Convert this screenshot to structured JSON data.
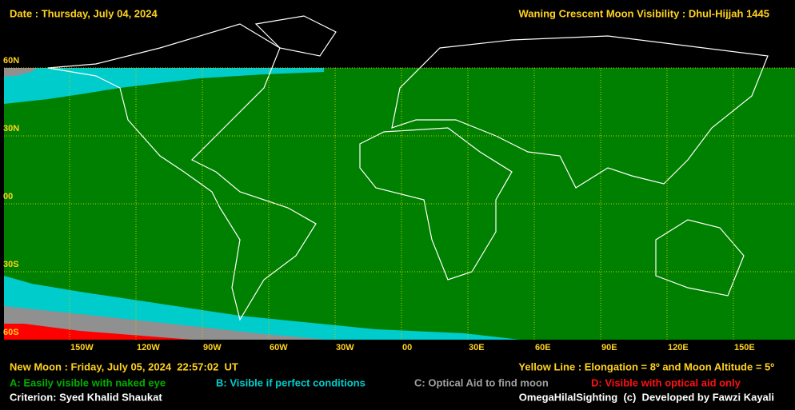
{
  "header": {
    "date": "Date : Thursday, July 04, 2024",
    "title": "Waning Crescent Moon Visibility : Dhul-Hijjah 1445"
  },
  "map": {
    "lat_labels": [
      "60N",
      "30N",
      "00",
      "30S",
      "60S"
    ],
    "lon_labels": [
      "150W",
      "120W",
      "90W",
      "60W",
      "30W",
      "00",
      "30E",
      "60E",
      "90E",
      "120E",
      "150E"
    ]
  },
  "footer": {
    "new_moon": "New Moon : Friday, July 05, 2024  22:57:02  UT",
    "yellow_line": "Yellow Line : Elongation = 8º and Moon Altitude = 5º",
    "legend": [
      "A: Easily visible with naked eye",
      "B: Visible if perfect conditions",
      "C: Optical Aid to find moon",
      "D: Visible with optical aid only"
    ],
    "criterion": "Criterion: Syed Khalid Shaukat",
    "credit": "OmegaHilalSighting  (c)  Developed by Fawzi Kayali"
  }
}
